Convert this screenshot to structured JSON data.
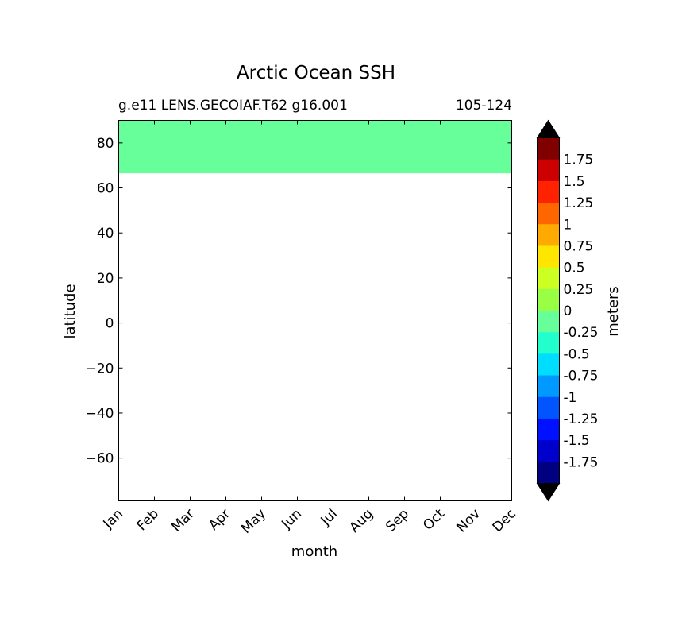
{
  "chart_data": {
    "type": "heatmap",
    "title": "Arctic Ocean SSH",
    "subtitle_left": "g.e11 LENS.GECOIAF.T62 g16.001",
    "subtitle_right": "105-124",
    "xlabel": "month",
    "ylabel": "latitude",
    "x_categories": [
      "Jan",
      "Feb",
      "Mar",
      "Apr",
      "May",
      "Jun",
      "Jul",
      "Aug",
      "Sep",
      "Oct",
      "Nov",
      "Dec"
    ],
    "ylim": [
      -79,
      90
    ],
    "y_ticks": [
      80,
      60,
      40,
      20,
      0,
      -20,
      -40,
      -60
    ],
    "y_tick_labels": [
      "80",
      "60",
      "40",
      "20",
      "0",
      "−20",
      "−40",
      "−60"
    ],
    "filled_band": {
      "lat_min": 66.5,
      "lat_max": 90,
      "month_start": "Jan",
      "month_end": "Dec",
      "value_range": [
        -0.25,
        0
      ],
      "color": "#66ff99"
    },
    "colorbar": {
      "label": "meters",
      "levels": [
        "1.75",
        "1.5",
        "1.25",
        "1",
        "0.75",
        "0.5",
        "0.25",
        "0",
        "-0.25",
        "-0.5",
        "-0.75",
        "-1",
        "-1.25",
        "-1.5",
        "-1.75"
      ],
      "colors_top_to_bottom": [
        "#800000",
        "#cc0000",
        "#ff2200",
        "#ff6600",
        "#ffaa00",
        "#ffe600",
        "#ccff22",
        "#99ff44",
        "#66ff99",
        "#22ffcc",
        "#00ddff",
        "#0099ff",
        "#0055ff",
        "#0011ff",
        "#0000cc",
        "#000080"
      ],
      "extend_colors": {
        "max": "#000000",
        "min": "#000000"
      }
    }
  }
}
